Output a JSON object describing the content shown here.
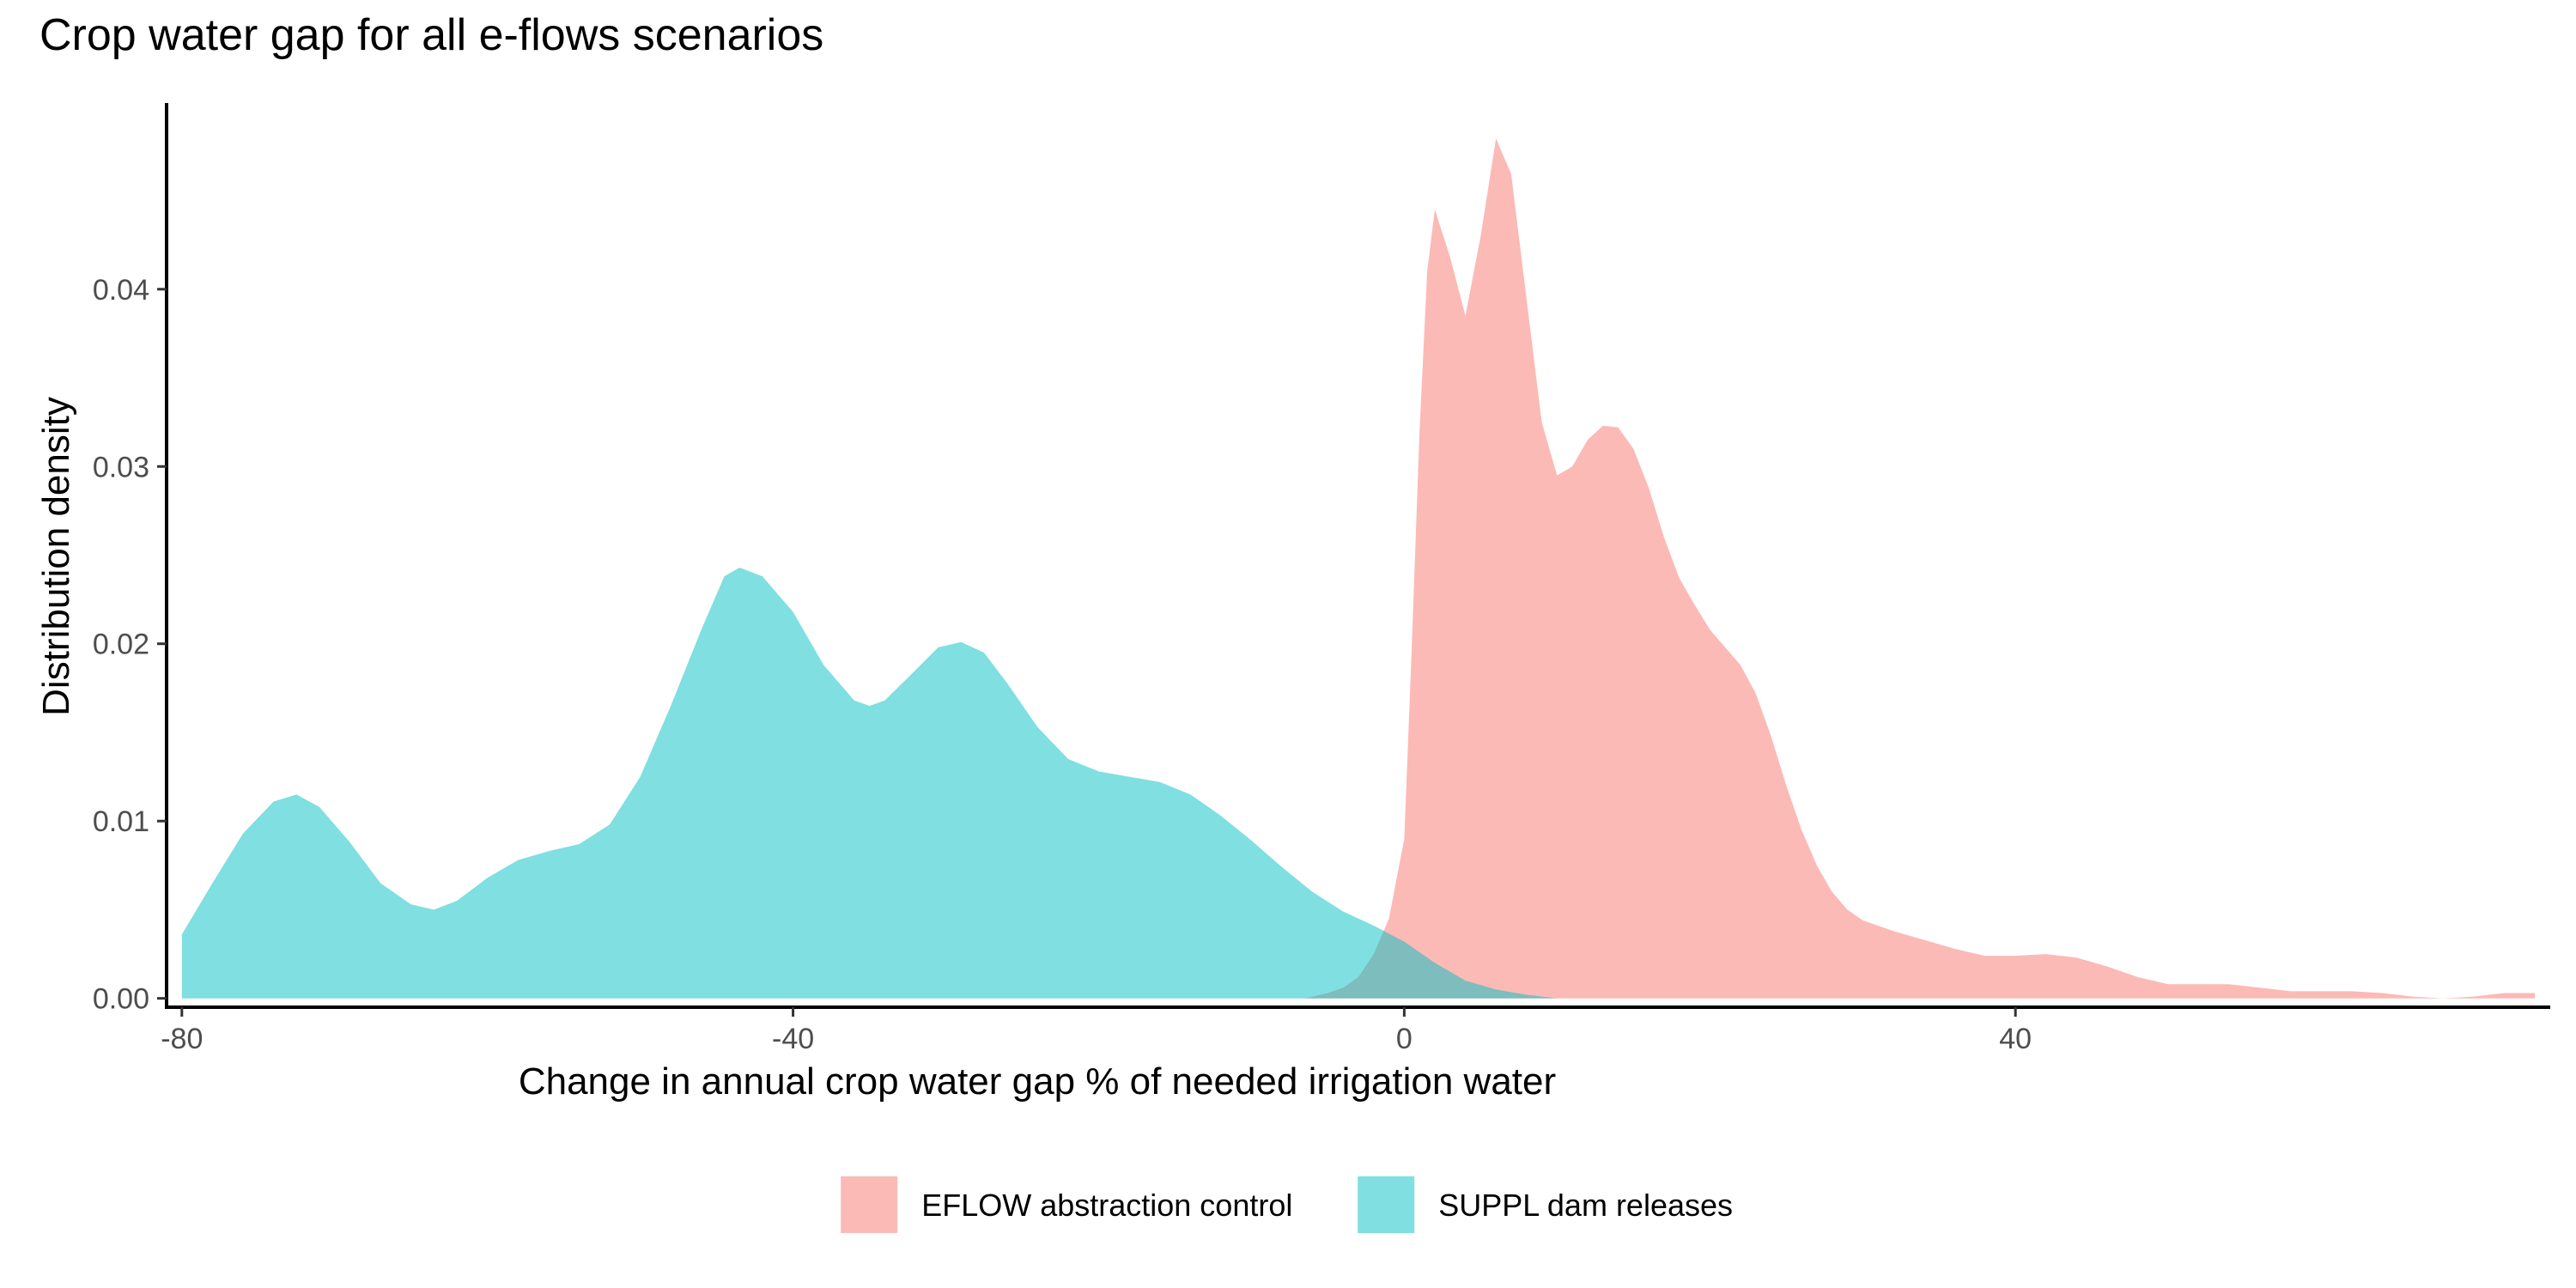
{
  "chart_data": {
    "type": "area",
    "subtype": "density",
    "title": "Crop water gap for all e-flows scenarios",
    "xlabel": "Change in annual crop water gap % of needed irrigation water",
    "ylabel": "Distribution density",
    "xlim": [
      -81,
      75
    ],
    "ylim": [
      -0.0005,
      0.0505
    ],
    "x_ticks": [
      -80,
      -40,
      0,
      40
    ],
    "x_tick_labels": [
      "-80",
      "-40",
      "0",
      "40"
    ],
    "y_ticks": [
      0.0,
      0.01,
      0.02,
      0.03,
      0.04
    ],
    "y_tick_labels": [
      "0.00",
      "0.01",
      "0.02",
      "0.03",
      "0.04"
    ],
    "grid": false,
    "legend_position": "bottom",
    "series": [
      {
        "name": "EFLOW abstraction control",
        "color": "#F8766D",
        "opacity": 0.5,
        "points": [
          [
            -6.5,
            0.0
          ],
          [
            -5,
            0.0003
          ],
          [
            -4,
            0.0006
          ],
          [
            -3,
            0.0012
          ],
          [
            -2,
            0.0025
          ],
          [
            -1,
            0.0045
          ],
          [
            0,
            0.009
          ],
          [
            0.5,
            0.02
          ],
          [
            1,
            0.032
          ],
          [
            1.5,
            0.041
          ],
          [
            2,
            0.0445
          ],
          [
            3,
            0.0418
          ],
          [
            4,
            0.0385
          ],
          [
            5,
            0.043
          ],
          [
            6,
            0.0485
          ],
          [
            7,
            0.0465
          ],
          [
            8,
            0.0395
          ],
          [
            9,
            0.0325
          ],
          [
            10,
            0.0295
          ],
          [
            11,
            0.03
          ],
          [
            12,
            0.0315
          ],
          [
            13,
            0.0323
          ],
          [
            14,
            0.0322
          ],
          [
            15,
            0.031
          ],
          [
            16,
            0.0288
          ],
          [
            17,
            0.026
          ],
          [
            18,
            0.0237
          ],
          [
            19,
            0.0222
          ],
          [
            20,
            0.0208
          ],
          [
            21,
            0.0198
          ],
          [
            22,
            0.0188
          ],
          [
            23,
            0.0172
          ],
          [
            24,
            0.0148
          ],
          [
            25,
            0.012
          ],
          [
            26,
            0.0095
          ],
          [
            27,
            0.0075
          ],
          [
            28,
            0.006
          ],
          [
            29,
            0.005
          ],
          [
            30,
            0.0044
          ],
          [
            32,
            0.0038
          ],
          [
            34,
            0.0033
          ],
          [
            36,
            0.0028
          ],
          [
            38,
            0.0024
          ],
          [
            40,
            0.0024
          ],
          [
            42,
            0.0025
          ],
          [
            44,
            0.0023
          ],
          [
            46,
            0.0018
          ],
          [
            48,
            0.0012
          ],
          [
            50,
            0.0008
          ],
          [
            52,
            0.0008
          ],
          [
            54,
            0.0008
          ],
          [
            56,
            0.0006
          ],
          [
            58,
            0.0004
          ],
          [
            60,
            0.0004
          ],
          [
            62,
            0.0004
          ],
          [
            64,
            0.0003
          ],
          [
            66,
            0.0001
          ],
          [
            68,
            0.0
          ],
          [
            70,
            0.0001
          ],
          [
            72,
            0.0003
          ],
          [
            74,
            0.0003
          ],
          [
            74,
            0.0
          ]
        ]
      },
      {
        "name": "SUPPL dam releases",
        "color": "#00BFC4",
        "opacity": 0.5,
        "points": [
          [
            -80,
            0.0
          ],
          [
            -80,
            0.0036
          ],
          [
            -78,
            0.0065
          ],
          [
            -76,
            0.0093
          ],
          [
            -74,
            0.0111
          ],
          [
            -72.5,
            0.0115
          ],
          [
            -71,
            0.0108
          ],
          [
            -69,
            0.0088
          ],
          [
            -67,
            0.0065
          ],
          [
            -65,
            0.0053
          ],
          [
            -63.5,
            0.005
          ],
          [
            -62,
            0.0055
          ],
          [
            -60,
            0.0068
          ],
          [
            -58,
            0.0078
          ],
          [
            -56,
            0.0083
          ],
          [
            -54,
            0.0087
          ],
          [
            -52,
            0.0098
          ],
          [
            -50,
            0.0125
          ],
          [
            -48,
            0.0165
          ],
          [
            -46,
            0.0208
          ],
          [
            -44.5,
            0.0238
          ],
          [
            -43.5,
            0.0243
          ],
          [
            -42,
            0.0238
          ],
          [
            -40,
            0.0218
          ],
          [
            -38,
            0.0188
          ],
          [
            -36,
            0.0168
          ],
          [
            -35,
            0.0165
          ],
          [
            -34,
            0.0168
          ],
          [
            -32,
            0.0185
          ],
          [
            -30.5,
            0.0198
          ],
          [
            -29,
            0.0201
          ],
          [
            -27.5,
            0.0195
          ],
          [
            -26,
            0.0178
          ],
          [
            -24,
            0.0153
          ],
          [
            -22,
            0.0135
          ],
          [
            -20,
            0.0128
          ],
          [
            -18,
            0.0125
          ],
          [
            -16,
            0.0122
          ],
          [
            -14,
            0.0115
          ],
          [
            -12,
            0.0103
          ],
          [
            -10,
            0.0089
          ],
          [
            -8,
            0.0074
          ],
          [
            -6,
            0.006
          ],
          [
            -4,
            0.0049
          ],
          [
            -2,
            0.0041
          ],
          [
            0,
            0.0032
          ],
          [
            2,
            0.002
          ],
          [
            4,
            0.001
          ],
          [
            6,
            0.0005
          ],
          [
            8,
            0.0002
          ],
          [
            10,
            0.0
          ],
          [
            10,
            0.0
          ]
        ]
      }
    ]
  }
}
